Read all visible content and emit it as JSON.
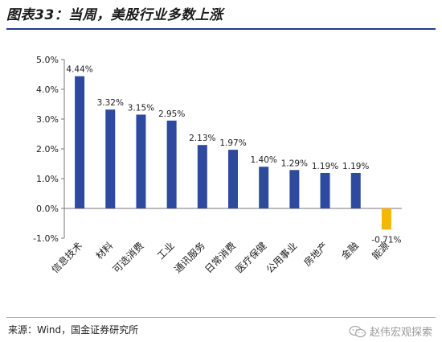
{
  "figure": {
    "title": "图表33：当周，美股行业多数上涨",
    "source": "来源：Wind，国金证券研究所",
    "watermark": "赵伟宏观探索"
  },
  "colors": {
    "positive_bar": "#2e4a9e",
    "negative_bar": "#f5b800",
    "title_rule": "#1f3a93"
  },
  "chart_data": {
    "type": "bar",
    "categories": [
      "信息技术",
      "材料",
      "可选消费",
      "工业",
      "通讯服务",
      "日常消费",
      "医疗保健",
      "公用事业",
      "房地产",
      "金融",
      "能源"
    ],
    "values": [
      4.44,
      3.32,
      3.15,
      2.95,
      2.13,
      1.97,
      1.4,
      1.29,
      1.19,
      1.19,
      -0.71
    ],
    "data_labels": [
      "4.44%",
      "3.32%",
      "3.15%",
      "2.95%",
      "2.13%",
      "1.97%",
      "1.40%",
      "1.29%",
      "1.19%",
      "1.19%",
      "-0.71%"
    ],
    "y_ticks": [
      -1,
      0,
      1,
      2,
      3,
      4,
      5
    ],
    "y_tick_labels": [
      "-1.0%",
      "0.0%",
      "1.0%",
      "2.0%",
      "3.0%",
      "4.0%",
      "5.0%"
    ],
    "ylim": [
      -1,
      5
    ],
    "grid": false,
    "legend": "none"
  }
}
